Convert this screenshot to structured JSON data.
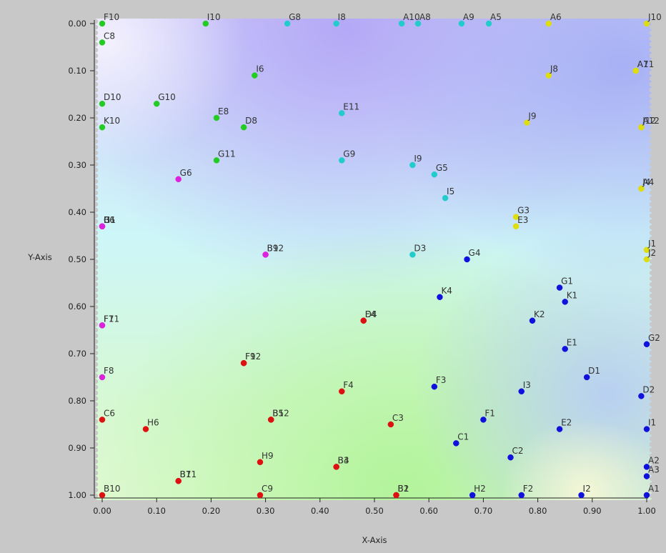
{
  "chart_data": {
    "type": "scatter",
    "title": "",
    "xlabel": "X-Axis",
    "ylabel": "Y-Axis",
    "xlim": [
      0.0,
      1.0
    ],
    "ylim": [
      0.0,
      1.0
    ],
    "y_inverted": true,
    "x_ticks": [
      "0.00",
      "0.10",
      "0.20",
      "0.30",
      "0.40",
      "0.50",
      "0.60",
      "0.70",
      "0.80",
      "0.90",
      "1.00"
    ],
    "y_ticks": [
      "0.00",
      "0.10",
      "0.20",
      "0.30",
      "0.40",
      "0.50",
      "0.60",
      "0.70",
      "0.80",
      "0.90",
      "1.00"
    ],
    "grid": false,
    "background": "color gradient (purple top, cyan middle, green bottom)",
    "colors": {
      "green": "#22cc22",
      "cyan": "#22cccc",
      "yellow": "#dddd11",
      "magenta": "#dd22dd",
      "blue": "#1111dd",
      "red": "#dd1111"
    },
    "points": [
      {
        "label": "F10",
        "x": 0.0,
        "y": 0.0,
        "color": "green"
      },
      {
        "label": "C8",
        "x": 0.0,
        "y": 0.04,
        "color": "green"
      },
      {
        "label": "I10",
        "x": 0.19,
        "y": 0.0,
        "color": "green"
      },
      {
        "label": "I6",
        "x": 0.28,
        "y": 0.11,
        "color": "green"
      },
      {
        "label": "D10",
        "x": 0.0,
        "y": 0.17,
        "color": "green"
      },
      {
        "label": "G10",
        "x": 0.1,
        "y": 0.17,
        "color": "green"
      },
      {
        "label": "K10",
        "x": 0.0,
        "y": 0.22,
        "color": "green"
      },
      {
        "label": "E8",
        "x": 0.21,
        "y": 0.2,
        "color": "green"
      },
      {
        "label": "D8",
        "x": 0.26,
        "y": 0.22,
        "color": "green"
      },
      {
        "label": "G11",
        "x": 0.21,
        "y": 0.29,
        "color": "green"
      },
      {
        "label": "G8",
        "x": 0.34,
        "y": 0.0,
        "color": "cyan"
      },
      {
        "label": "I8",
        "x": 0.43,
        "y": 0.0,
        "color": "cyan"
      },
      {
        "label": "A10",
        "x": 0.55,
        "y": 0.0,
        "color": "cyan"
      },
      {
        "label": "A8",
        "x": 0.58,
        "y": 0.0,
        "color": "cyan"
      },
      {
        "label": "A9",
        "x": 0.66,
        "y": 0.0,
        "color": "cyan"
      },
      {
        "label": "A5",
        "x": 0.71,
        "y": 0.0,
        "color": "cyan"
      },
      {
        "label": "E11",
        "x": 0.44,
        "y": 0.19,
        "color": "cyan"
      },
      {
        "label": "G9",
        "x": 0.44,
        "y": 0.29,
        "color": "cyan"
      },
      {
        "label": "I9",
        "x": 0.57,
        "y": 0.3,
        "color": "cyan"
      },
      {
        "label": "G5",
        "x": 0.61,
        "y": 0.32,
        "color": "cyan"
      },
      {
        "label": "I5",
        "x": 0.63,
        "y": 0.37,
        "color": "cyan"
      },
      {
        "label": "D3",
        "x": 0.57,
        "y": 0.49,
        "color": "cyan"
      },
      {
        "label": "A6",
        "x": 0.82,
        "y": 0.0,
        "color": "yellow"
      },
      {
        "label": "J10",
        "x": 1.0,
        "y": 0.0,
        "color": "yellow"
      },
      {
        "label": "J8",
        "x": 0.82,
        "y": 0.11,
        "color": "yellow"
      },
      {
        "label": "A7",
        "x": 0.98,
        "y": 0.1,
        "color": "yellow"
      },
      {
        "label": "A11",
        "x": 0.98,
        "y": 0.1,
        "color": "yellow"
      },
      {
        "label": "J9",
        "x": 0.78,
        "y": 0.21,
        "color": "yellow"
      },
      {
        "label": "A12",
        "x": 0.99,
        "y": 0.22,
        "color": "yellow"
      },
      {
        "label": "J12",
        "x": 0.99,
        "y": 0.22,
        "color": "yellow"
      },
      {
        "label": "A4",
        "x": 0.99,
        "y": 0.35,
        "color": "yellow"
      },
      {
        "label": "J4",
        "x": 0.99,
        "y": 0.35,
        "color": "yellow"
      },
      {
        "label": "G3",
        "x": 0.76,
        "y": 0.41,
        "color": "yellow"
      },
      {
        "label": "E3",
        "x": 0.76,
        "y": 0.43,
        "color": "yellow"
      },
      {
        "label": "J1",
        "x": 1.0,
        "y": 0.48,
        "color": "yellow"
      },
      {
        "label": "J2",
        "x": 1.0,
        "y": 0.5,
        "color": "yellow"
      },
      {
        "label": "G6",
        "x": 0.14,
        "y": 0.33,
        "color": "magenta"
      },
      {
        "label": "B6",
        "x": 0.0,
        "y": 0.43,
        "color": "magenta"
      },
      {
        "label": "H1",
        "x": 0.0,
        "y": 0.43,
        "color": "magenta"
      },
      {
        "label": "G1",
        "x": 0.0,
        "y": 0.43,
        "color": "magenta"
      },
      {
        "label": "B9",
        "x": 0.3,
        "y": 0.49,
        "color": "magenta"
      },
      {
        "label": "B12",
        "x": 0.3,
        "y": 0.49,
        "color": "magenta"
      },
      {
        "label": "F7",
        "x": 0.0,
        "y": 0.64,
        "color": "magenta"
      },
      {
        "label": "F11",
        "x": 0.0,
        "y": 0.64,
        "color": "magenta"
      },
      {
        "label": "F8",
        "x": 0.0,
        "y": 0.75,
        "color": "magenta"
      },
      {
        "label": "G4",
        "x": 0.67,
        "y": 0.5,
        "color": "blue"
      },
      {
        "label": "G1",
        "x": 0.84,
        "y": 0.56,
        "color": "blue"
      },
      {
        "label": "K4",
        "x": 0.62,
        "y": 0.58,
        "color": "blue"
      },
      {
        "label": "K1",
        "x": 0.85,
        "y": 0.59,
        "color": "blue"
      },
      {
        "label": "K2",
        "x": 0.79,
        "y": 0.63,
        "color": "blue"
      },
      {
        "label": "E1",
        "x": 0.85,
        "y": 0.69,
        "color": "blue"
      },
      {
        "label": "G2",
        "x": 1.0,
        "y": 0.68,
        "color": "blue"
      },
      {
        "label": "D1",
        "x": 0.89,
        "y": 0.75,
        "color": "blue"
      },
      {
        "label": "F3",
        "x": 0.61,
        "y": 0.77,
        "color": "blue"
      },
      {
        "label": "I3",
        "x": 0.77,
        "y": 0.78,
        "color": "blue"
      },
      {
        "label": "D2",
        "x": 0.99,
        "y": 0.79,
        "color": "blue"
      },
      {
        "label": "F1",
        "x": 0.7,
        "y": 0.84,
        "color": "blue"
      },
      {
        "label": "E2",
        "x": 0.84,
        "y": 0.86,
        "color": "blue"
      },
      {
        "label": "I1",
        "x": 1.0,
        "y": 0.86,
        "color": "blue"
      },
      {
        "label": "C1",
        "x": 0.65,
        "y": 0.89,
        "color": "blue"
      },
      {
        "label": "C2",
        "x": 0.75,
        "y": 0.92,
        "color": "blue"
      },
      {
        "label": "A2",
        "x": 1.0,
        "y": 0.94,
        "color": "blue"
      },
      {
        "label": "A3",
        "x": 1.0,
        "y": 0.96,
        "color": "blue"
      },
      {
        "label": "H2",
        "x": 0.68,
        "y": 1.0,
        "color": "blue"
      },
      {
        "label": "F2",
        "x": 0.77,
        "y": 1.0,
        "color": "blue"
      },
      {
        "label": "I2",
        "x": 0.88,
        "y": 1.0,
        "color": "blue"
      },
      {
        "label": "A1",
        "x": 1.0,
        "y": 1.0,
        "color": "blue"
      },
      {
        "label": "E4",
        "x": 0.48,
        "y": 0.63,
        "color": "red"
      },
      {
        "label": "D4",
        "x": 0.48,
        "y": 0.63,
        "color": "red"
      },
      {
        "label": "F9",
        "x": 0.26,
        "y": 0.72,
        "color": "red"
      },
      {
        "label": "F12",
        "x": 0.26,
        "y": 0.72,
        "color": "red"
      },
      {
        "label": "F4",
        "x": 0.44,
        "y": 0.78,
        "color": "red"
      },
      {
        "label": "C6",
        "x": 0.0,
        "y": 0.84,
        "color": "red"
      },
      {
        "label": "H6",
        "x": 0.08,
        "y": 0.86,
        "color": "red"
      },
      {
        "label": "B5",
        "x": 0.31,
        "y": 0.84,
        "color": "red"
      },
      {
        "label": "B12",
        "x": 0.31,
        "y": 0.84,
        "color": "red"
      },
      {
        "label": "C3",
        "x": 0.53,
        "y": 0.85,
        "color": "red"
      },
      {
        "label": "H9",
        "x": 0.29,
        "y": 0.93,
        "color": "red"
      },
      {
        "label": "B3",
        "x": 0.43,
        "y": 0.94,
        "color": "red"
      },
      {
        "label": "B4",
        "x": 0.43,
        "y": 0.94,
        "color": "red"
      },
      {
        "label": "B7",
        "x": 0.14,
        "y": 0.97,
        "color": "red"
      },
      {
        "label": "B11",
        "x": 0.14,
        "y": 0.97,
        "color": "red"
      },
      {
        "label": "B10",
        "x": 0.0,
        "y": 1.0,
        "color": "red"
      },
      {
        "label": "C9",
        "x": 0.29,
        "y": 1.0,
        "color": "red"
      },
      {
        "label": "B1",
        "x": 0.54,
        "y": 1.0,
        "color": "red"
      },
      {
        "label": "B2",
        "x": 0.54,
        "y": 1.0,
        "color": "red"
      }
    ]
  }
}
